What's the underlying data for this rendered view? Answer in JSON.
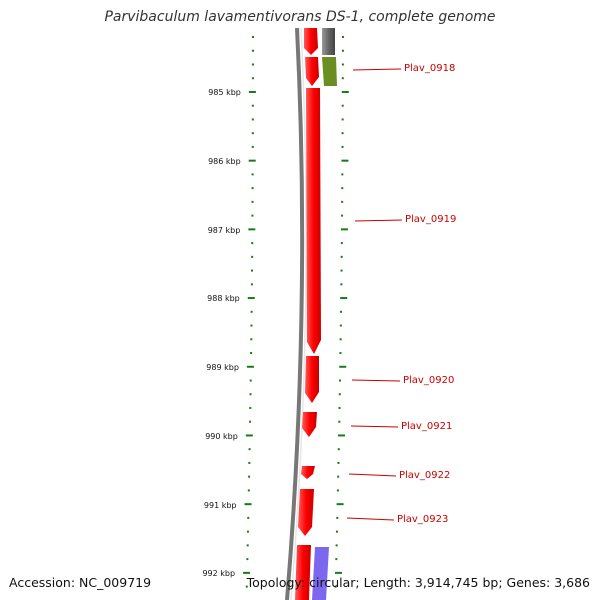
{
  "title": "Parvibaculum lavamentivorans DS-1, complete genome",
  "accession": "Accession: NC_009719",
  "summary": "Topology: circular; Length: 3,914,745 bp; Genes: 3,686",
  "scale_labels": [
    "985 kbp",
    "986 kbp",
    "987 kbp",
    "988 kbp",
    "989 kbp",
    "990 kbp",
    "991 kbp",
    "992 kbp"
  ],
  "genes": [
    {
      "id": "Plav_0918",
      "strand": "minus",
      "color": "#6b8e23"
    },
    {
      "id": "Plav_0919",
      "strand": "plus",
      "color": "#ff0000"
    },
    {
      "id": "Plav_0920",
      "strand": "plus",
      "color": "#ff0000"
    },
    {
      "id": "Plav_0921",
      "strand": "plus",
      "color": "#ff0000"
    },
    {
      "id": "Plav_0922",
      "strand": "plus",
      "color": "#ff0000"
    },
    {
      "id": "Plav_0923",
      "strand": "plus",
      "color": "#ff0000"
    }
  ],
  "colors": {
    "tick": "#1a7a1a",
    "backbone": "#777777",
    "cds_plus": "#ff0000",
    "cds_minus_gray": "#666666",
    "cds_minus_green": "#6b8e23",
    "cds_purple": "#7b68ee",
    "label": "#cc0000"
  }
}
